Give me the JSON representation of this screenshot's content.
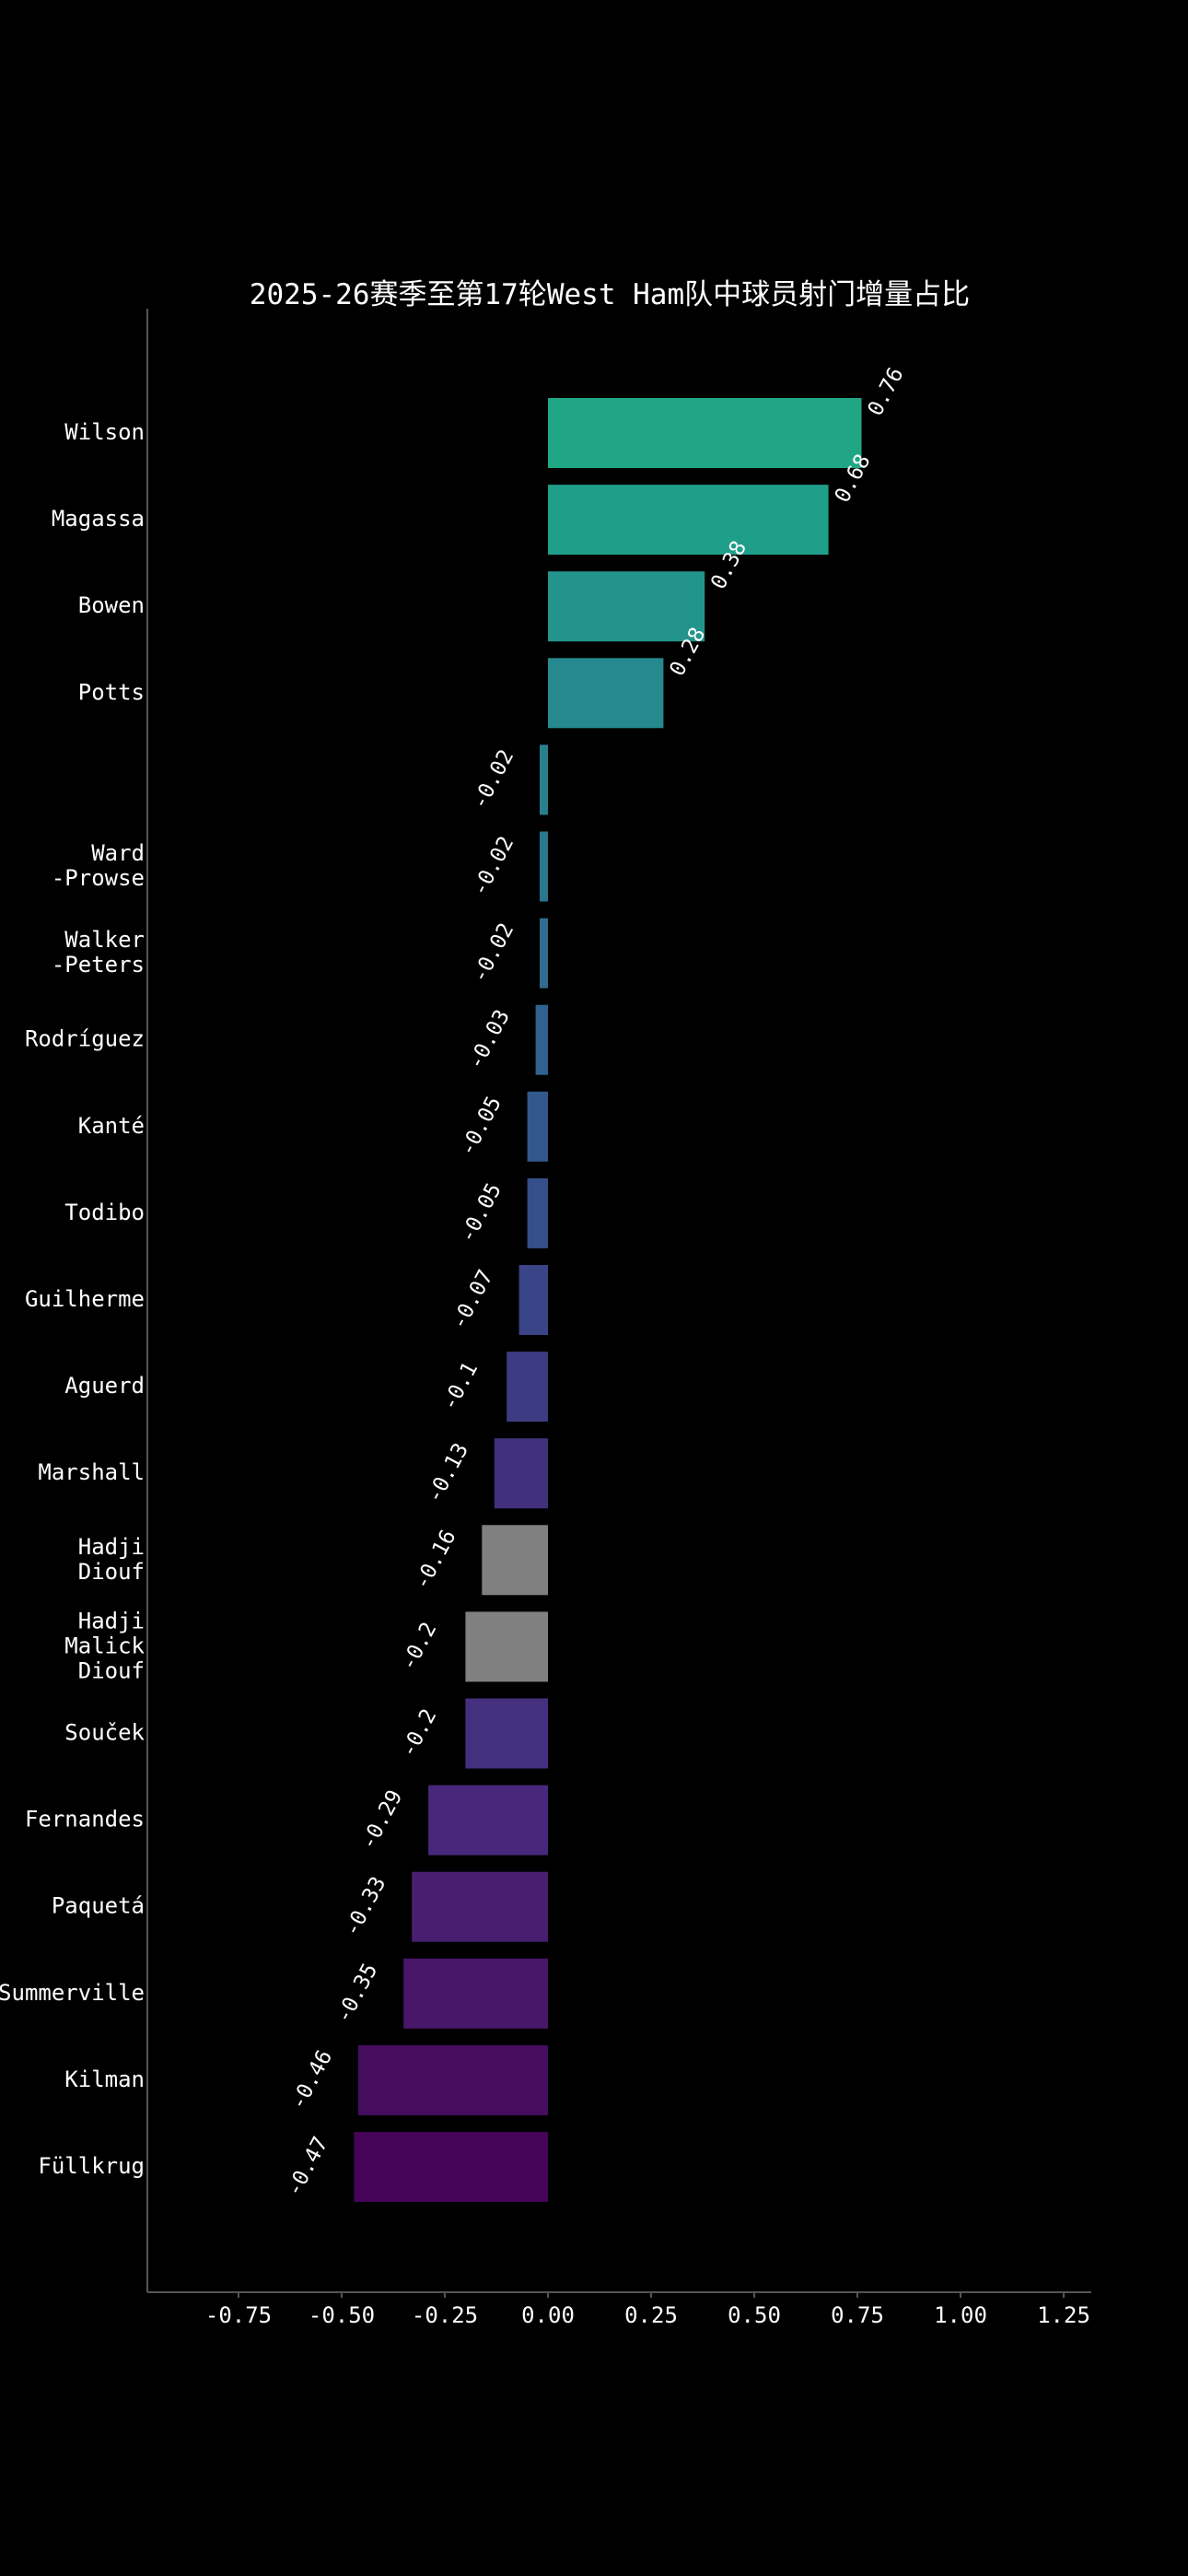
{
  "chart_data": {
    "type": "bar",
    "orientation": "horizontal",
    "title": "2025-26赛季至第17轮West Ham队中球员射门增量占比",
    "xlabel": "",
    "ylabel": "",
    "xlim": [
      -0.97,
      1.32
    ],
    "xticks": [
      -0.75,
      -0.5,
      -0.25,
      0.0,
      0.25,
      0.5,
      0.75,
      1.0,
      1.25
    ],
    "xtick_labels": [
      "-0.75",
      "-0.50",
      "-0.25",
      "0.00",
      "0.25",
      "0.50",
      "0.75",
      "1.00",
      "1.25"
    ],
    "grid": false,
    "categories": [
      [
        "Wilson"
      ],
      [
        "Magassa"
      ],
      [
        "Bowen"
      ],
      [
        "Potts"
      ],
      [
        ""
      ],
      [
        "Ward",
        "-Prowse"
      ],
      [
        "Walker",
        "-Peters"
      ],
      [
        "Rodríguez"
      ],
      [
        "Kanté"
      ],
      [
        "Todibo"
      ],
      [
        "Guilherme"
      ],
      [
        "Aguerd"
      ],
      [
        "Marshall"
      ],
      [
        "Hadji",
        "Diouf"
      ],
      [
        "Hadji",
        "Malick",
        "Diouf"
      ],
      [
        "Souček"
      ],
      [
        "Fernandes"
      ],
      [
        "Paquetá"
      ],
      [
        "Summerville"
      ],
      [
        "Kilman"
      ],
      [
        "Füllkrug"
      ]
    ],
    "values": [
      0.76,
      0.68,
      0.38,
      0.28,
      -0.02,
      -0.02,
      -0.02,
      -0.03,
      -0.05,
      -0.05,
      -0.07,
      -0.1,
      -0.13,
      -0.16,
      -0.2,
      -0.2,
      -0.29,
      -0.33,
      -0.35,
      -0.46,
      -0.47
    ],
    "value_labels": [
      "0.76",
      "0.68",
      "0.38",
      "0.28",
      "-0.02",
      "-0.02",
      "-0.02",
      "-0.03",
      "-0.05",
      "-0.05",
      "-0.07",
      "-0.1",
      "-0.13",
      "-0.16",
      "-0.2",
      "-0.2",
      "-0.29",
      "-0.33",
      "-0.35",
      "-0.46",
      "-0.47"
    ],
    "colors": [
      "#21a685",
      "#1f9e89",
      "#23948c",
      "#26898e",
      "#2a7f8e",
      "#2c768e",
      "#2f6c8e",
      "#31628d",
      "#34588c",
      "#364e8a",
      "#3a4587",
      "#3d3b82",
      "#41317c",
      "#808080",
      "#808080",
      "#453080",
      "#47287a",
      "#481f70",
      "#481769",
      "#460d5f",
      "#450457"
    ]
  }
}
